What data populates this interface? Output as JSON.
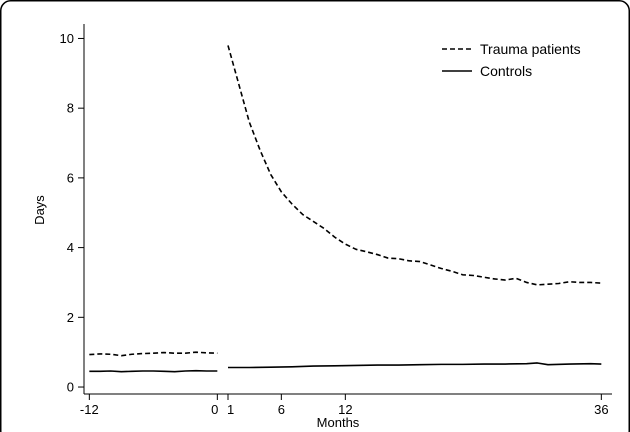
{
  "chart_data": {
    "type": "line",
    "title": "",
    "xlabel": "Months",
    "ylabel": "Days",
    "xlim": [
      -12.5,
      37
    ],
    "ylim": [
      -0.2,
      10.3
    ],
    "xticks": [
      -12,
      0,
      1,
      6,
      12,
      36
    ],
    "xtick_labels": [
      "-12",
      "0",
      "1",
      "6",
      "12",
      "36"
    ],
    "yticks": [
      0,
      2,
      4,
      6,
      8,
      10
    ],
    "grid": false,
    "legend": "top-right",
    "series": [
      {
        "name": "Trauma patients",
        "style": "dashed",
        "color": "#000000",
        "segments": [
          {
            "x": [
              -12,
              -11,
              -10,
              -9,
              -8,
              -7,
              -6,
              -5,
              -4,
              -3,
              -2,
              -1,
              0
            ],
            "y": [
              0.93,
              0.95,
              0.94,
              0.9,
              0.94,
              0.96,
              0.97,
              0.99,
              0.97,
              0.97,
              1.0,
              0.98,
              0.97
            ]
          },
          {
            "x": [
              1,
              2,
              3,
              4,
              5,
              6,
              7,
              8,
              9,
              10,
              11,
              12,
              13,
              14,
              15,
              16,
              17,
              18,
              19,
              20,
              21,
              22,
              23,
              24,
              25,
              26,
              27,
              28,
              29,
              30,
              31,
              32,
              33,
              34,
              35,
              36
            ],
            "y": [
              9.8,
              8.7,
              7.6,
              6.8,
              6.1,
              5.6,
              5.25,
              4.95,
              4.75,
              4.55,
              4.3,
              4.1,
              3.95,
              3.88,
              3.8,
              3.7,
              3.68,
              3.62,
              3.6,
              3.5,
              3.4,
              3.32,
              3.22,
              3.2,
              3.15,
              3.1,
              3.07,
              3.12,
              3.0,
              2.93,
              2.95,
              2.97,
              3.02,
              3.0,
              3.0,
              2.98
            ]
          }
        ]
      },
      {
        "name": "Controls",
        "style": "solid",
        "color": "#000000",
        "segments": [
          {
            "x": [
              -12,
              -11,
              -10,
              -9,
              -8,
              -7,
              -6,
              -5,
              -4,
              -3,
              -2,
              -1,
              0
            ],
            "y": [
              0.45,
              0.45,
              0.46,
              0.44,
              0.45,
              0.46,
              0.46,
              0.45,
              0.44,
              0.46,
              0.47,
              0.46,
              0.46
            ]
          },
          {
            "x": [
              1,
              3,
              5,
              7,
              9,
              11,
              13,
              15,
              17,
              19,
              21,
              23,
              25,
              27,
              29,
              30,
              31,
              33,
              35,
              36
            ],
            "y": [
              0.56,
              0.56,
              0.57,
              0.58,
              0.6,
              0.61,
              0.62,
              0.63,
              0.63,
              0.64,
              0.65,
              0.65,
              0.66,
              0.66,
              0.67,
              0.69,
              0.64,
              0.66,
              0.67,
              0.66
            ]
          }
        ]
      }
    ]
  }
}
